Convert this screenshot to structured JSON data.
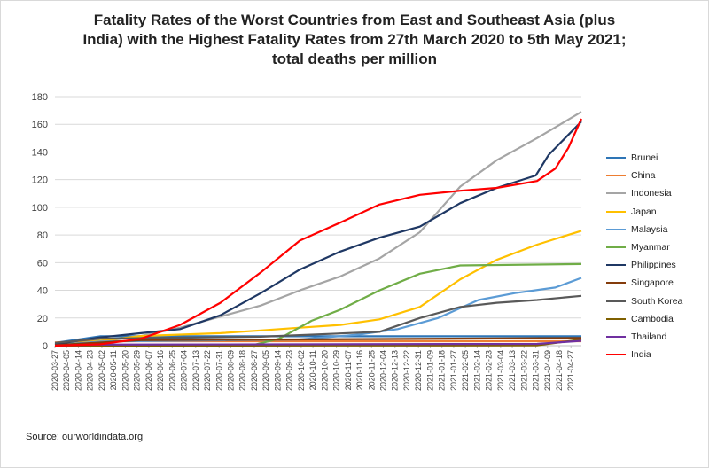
{
  "title_lines": [
    "Fatality Rates of the Worst Countries from East and Southeast Asia (plus",
    "India) with the Highest Fatality Rates from 27th March 2020 to 5th May 2021;",
    "total deaths per million"
  ],
  "source": "Source: ourworldindata.org",
  "chart_data": {
    "type": "line",
    "ylim": [
      0,
      180
    ],
    "yticks": [
      0,
      20,
      40,
      60,
      80,
      100,
      120,
      140,
      160,
      180
    ],
    "grid": true,
    "legend_position": "right",
    "x_start": "2020-03-27",
    "x_end": "2021-05-05",
    "x_tick_labels": [
      "2020-03-27",
      "2020-04-05",
      "2020-04-14",
      "2020-04-23",
      "2020-05-02",
      "2020-05-11",
      "2020-05-20",
      "2020-05-29",
      "2020-06-07",
      "2020-06-16",
      "2020-06-25",
      "2020-07-04",
      "2020-07-13",
      "2020-07-22",
      "2020-07-31",
      "2020-08-09",
      "2020-08-18",
      "2020-08-27",
      "2020-09-05",
      "2020-09-14",
      "2020-09-23",
      "2020-10-02",
      "2020-10-11",
      "2020-10-20",
      "2020-10-29",
      "2020-11-07",
      "2020-11-16",
      "2020-11-25",
      "2020-12-04",
      "2020-12-13",
      "2020-12-22",
      "2020-12-31",
      "2021-01-09",
      "2021-01-18",
      "2021-01-27",
      "2021-02-05",
      "2021-02-14",
      "2021-02-23",
      "2021-03-04",
      "2021-03-13",
      "2021-03-22",
      "2021-03-31",
      "2021-04-09",
      "2021-04-18",
      "2021-04-27"
    ],
    "series": [
      {
        "name": "Brunei",
        "color": "#2e75b6",
        "points": [
          [
            "2020-03-27",
            2
          ],
          [
            "2020-05-01",
            6.8
          ],
          [
            "2021-05-05",
            6.8
          ]
        ]
      },
      {
        "name": "China",
        "color": "#ed7d31",
        "points": [
          [
            "2020-03-27",
            2.3
          ],
          [
            "2020-04-20",
            3.2
          ],
          [
            "2021-05-05",
            3.2
          ]
        ]
      },
      {
        "name": "Indonesia",
        "color": "#a5a5a5",
        "points": [
          [
            "2020-03-27",
            0.2
          ],
          [
            "2020-05-01",
            3
          ],
          [
            "2020-06-01",
            7
          ],
          [
            "2020-07-01",
            13
          ],
          [
            "2020-08-01",
            21
          ],
          [
            "2020-09-01",
            29
          ],
          [
            "2020-10-01",
            40
          ],
          [
            "2020-11-01",
            50
          ],
          [
            "2020-12-01",
            63
          ],
          [
            "2021-01-01",
            82
          ],
          [
            "2021-02-01",
            115
          ],
          [
            "2021-03-01",
            134
          ],
          [
            "2021-04-01",
            150
          ],
          [
            "2021-05-05",
            169
          ]
        ]
      },
      {
        "name": "Japan",
        "color": "#ffc000",
        "points": [
          [
            "2020-03-27",
            0.4
          ],
          [
            "2020-05-01",
            3.5
          ],
          [
            "2020-06-01",
            7
          ],
          [
            "2020-08-01",
            9
          ],
          [
            "2020-09-01",
            11
          ],
          [
            "2020-10-01",
            13
          ],
          [
            "2020-11-01",
            15
          ],
          [
            "2020-12-01",
            19
          ],
          [
            "2021-01-01",
            28
          ],
          [
            "2021-02-01",
            48
          ],
          [
            "2021-03-01",
            62
          ],
          [
            "2021-04-01",
            73
          ],
          [
            "2021-05-05",
            83
          ]
        ]
      },
      {
        "name": "Malaysia",
        "color": "#5b9bd5",
        "points": [
          [
            "2020-03-27",
            0.5
          ],
          [
            "2020-05-01",
            3
          ],
          [
            "2020-10-01",
            4.5
          ],
          [
            "2020-11-15",
            8
          ],
          [
            "2020-12-15",
            12
          ],
          [
            "2021-01-15",
            20
          ],
          [
            "2021-02-15",
            33
          ],
          [
            "2021-03-15",
            38
          ],
          [
            "2021-04-15",
            42
          ],
          [
            "2021-05-05",
            49
          ]
        ]
      },
      {
        "name": "Myanmar",
        "color": "#70ad47",
        "points": [
          [
            "2020-03-27",
            0
          ],
          [
            "2020-08-25",
            0.2
          ],
          [
            "2020-09-15",
            5
          ],
          [
            "2020-10-10",
            18
          ],
          [
            "2020-11-01",
            26
          ],
          [
            "2020-12-01",
            40
          ],
          [
            "2021-01-01",
            52
          ],
          [
            "2021-02-01",
            58
          ],
          [
            "2021-05-05",
            59
          ]
        ]
      },
      {
        "name": "Philippines",
        "color": "#1f3864",
        "points": [
          [
            "2020-03-27",
            1
          ],
          [
            "2020-05-01",
            6
          ],
          [
            "2020-06-01",
            9
          ],
          [
            "2020-07-01",
            12
          ],
          [
            "2020-08-01",
            22
          ],
          [
            "2020-09-01",
            38
          ],
          [
            "2020-10-01",
            55
          ],
          [
            "2020-11-01",
            68
          ],
          [
            "2020-12-01",
            78
          ],
          [
            "2021-01-01",
            86
          ],
          [
            "2021-02-01",
            103
          ],
          [
            "2021-03-01",
            114
          ],
          [
            "2021-03-31",
            123
          ],
          [
            "2021-04-10",
            138
          ],
          [
            "2021-05-05",
            162
          ]
        ]
      },
      {
        "name": "Singapore",
        "color": "#843c0c",
        "points": [
          [
            "2020-03-27",
            0.4
          ],
          [
            "2020-06-01",
            4
          ],
          [
            "2021-05-05",
            5.5
          ]
        ]
      },
      {
        "name": "South Korea",
        "color": "#595959",
        "points": [
          [
            "2020-03-27",
            2
          ],
          [
            "2020-05-01",
            5
          ],
          [
            "2020-09-01",
            6.5
          ],
          [
            "2020-12-01",
            10
          ],
          [
            "2021-01-01",
            20
          ],
          [
            "2021-02-01",
            28
          ],
          [
            "2021-03-01",
            31
          ],
          [
            "2021-04-01",
            33
          ],
          [
            "2021-05-05",
            36
          ]
        ]
      },
      {
        "name": "Cambodia",
        "color": "#7f6000",
        "points": [
          [
            "2020-03-27",
            0
          ],
          [
            "2021-04-01",
            0.2
          ],
          [
            "2021-05-05",
            4.5
          ]
        ]
      },
      {
        "name": "Thailand",
        "color": "#7030a0",
        "points": [
          [
            "2020-03-27",
            0.1
          ],
          [
            "2020-05-01",
            0.8
          ],
          [
            "2021-04-01",
            1.3
          ],
          [
            "2021-05-05",
            3.5
          ]
        ]
      },
      {
        "name": "India",
        "color": "#ff0000",
        "points": [
          [
            "2020-03-27",
            0
          ],
          [
            "2020-05-01",
            1
          ],
          [
            "2020-06-01",
            5
          ],
          [
            "2020-07-01",
            15
          ],
          [
            "2020-08-01",
            31
          ],
          [
            "2020-09-01",
            53
          ],
          [
            "2020-10-01",
            76
          ],
          [
            "2020-11-01",
            89
          ],
          [
            "2020-12-01",
            102
          ],
          [
            "2021-01-01",
            109
          ],
          [
            "2021-02-01",
            112
          ],
          [
            "2021-03-01",
            114
          ],
          [
            "2021-04-01",
            119
          ],
          [
            "2021-04-15",
            128
          ],
          [
            "2021-04-25",
            143
          ],
          [
            "2021-05-05",
            164
          ]
        ]
      }
    ]
  }
}
